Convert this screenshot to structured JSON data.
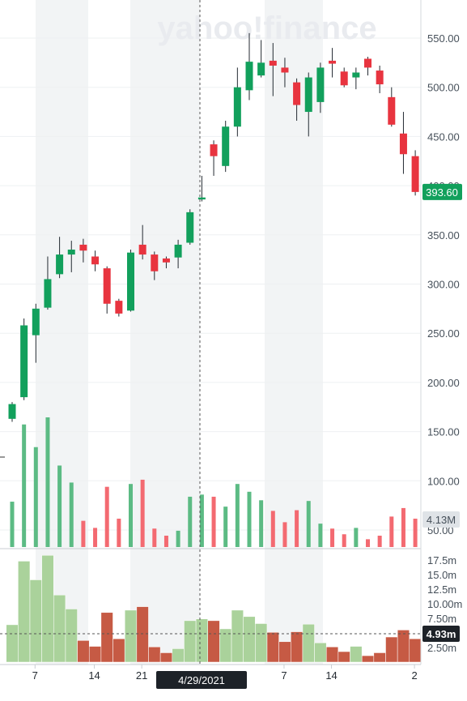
{
  "watermark": "yahoo!finance",
  "chart_data": {
    "type": "candlestick",
    "price_axis": {
      "ticks": [
        "550.00",
        "500.00",
        "450.00",
        "400.00",
        "350.00",
        "300.00",
        "250.00",
        "200.00",
        "150.00",
        "100.00",
        "50.00"
      ],
      "range": [
        40,
        590
      ]
    },
    "volume_axis": {
      "ticks": [
        "17.5m",
        "15.0m",
        "12.5m",
        "10.00m",
        "7.50m",
        "5.00m",
        "2.50m"
      ],
      "range": [
        0,
        18.9
      ]
    },
    "x_ticks": [
      "7",
      "14",
      "21",
      "7",
      "14",
      "2"
    ],
    "crosshair": {
      "date": "4/29/2021",
      "price_badge": "393.60",
      "volume_badge": "4.93m",
      "top_volume_badge": "4.13M"
    },
    "candles": [
      {
        "o": 163,
        "c": 178,
        "h": 180,
        "l": 160,
        "v": 6.4
      },
      {
        "o": 185,
        "c": 258,
        "h": 265,
        "l": 182,
        "v": 17.3
      },
      {
        "o": 248,
        "c": 275,
        "h": 280,
        "l": 220,
        "v": 14.1
      },
      {
        "o": 276,
        "c": 305,
        "h": 328,
        "l": 274,
        "v": 18.3
      },
      {
        "o": 310,
        "c": 330,
        "h": 348,
        "l": 306,
        "v": 11.5
      },
      {
        "o": 330,
        "c": 335,
        "h": 344,
        "l": 312,
        "v": 9.1
      },
      {
        "o": 340,
        "c": 334,
        "h": 346,
        "l": 322,
        "v": 3.7
      },
      {
        "o": 328,
        "c": 320,
        "h": 334,
        "l": 313,
        "v": 2.7
      },
      {
        "o": 316,
        "c": 280,
        "h": 318,
        "l": 270,
        "v": 8.5
      },
      {
        "o": 283,
        "c": 270,
        "h": 285,
        "l": 267,
        "v": 4.0
      },
      {
        "o": 273,
        "c": 332,
        "h": 335,
        "l": 272,
        "v": 8.9
      },
      {
        "o": 340,
        "c": 330,
        "h": 360,
        "l": 325,
        "v": 9.5
      },
      {
        "o": 330,
        "c": 313,
        "h": 333,
        "l": 304,
        "v": 2.6
      },
      {
        "o": 326,
        "c": 322,
        "h": 328,
        "l": 316,
        "v": 1.6
      },
      {
        "o": 327,
        "c": 340,
        "h": 345,
        "l": 316,
        "v": 2.3
      },
      {
        "o": 342,
        "c": 373,
        "h": 376,
        "l": 340,
        "v": 7.1
      },
      {
        "o": 386,
        "c": 388,
        "h": 410,
        "l": 384,
        "v": 7.4
      },
      {
        "o": 442,
        "c": 430,
        "h": 446,
        "l": 410,
        "v": 7.1
      },
      {
        "o": 420,
        "c": 460,
        "h": 466,
        "l": 414,
        "v": 5.7
      },
      {
        "o": 460,
        "c": 500,
        "h": 520,
        "l": 450,
        "v": 8.9
      },
      {
        "o": 497,
        "c": 526,
        "h": 555,
        "l": 487,
        "v": 7.8
      },
      {
        "o": 512,
        "c": 525,
        "h": 548,
        "l": 510,
        "v": 6.6
      },
      {
        "o": 527,
        "c": 522,
        "h": 545,
        "l": 491,
        "v": 5.1
      },
      {
        "o": 520,
        "c": 515,
        "h": 530,
        "l": 500,
        "v": 3.5
      },
      {
        "o": 505,
        "c": 482,
        "h": 509,
        "l": 466,
        "v": 5.2
      },
      {
        "o": 475,
        "c": 510,
        "h": 515,
        "l": 450,
        "v": 6.5
      },
      {
        "o": 485,
        "c": 520,
        "h": 525,
        "l": 474,
        "v": 3.3
      },
      {
        "o": 527,
        "c": 524,
        "h": 540,
        "l": 510,
        "v": 2.6
      },
      {
        "o": 516,
        "c": 502,
        "h": 520,
        "l": 500,
        "v": 1.8
      },
      {
        "o": 510,
        "c": 515,
        "h": 520,
        "l": 498,
        "v": 2.7
      },
      {
        "o": 529,
        "c": 520,
        "h": 531,
        "l": 512,
        "v": 1.1
      },
      {
        "o": 517,
        "c": 503,
        "h": 522,
        "l": 494,
        "v": 1.6
      },
      {
        "o": 490,
        "c": 462,
        "h": 500,
        "l": 460,
        "v": 4.3
      },
      {
        "o": 453,
        "c": 432,
        "h": 475,
        "l": 412,
        "v": 5.5
      },
      {
        "o": 430,
        "c": 393.6,
        "h": 436,
        "l": 390,
        "v": 4.0
      }
    ],
    "colors": {
      "up": "#12a05c",
      "down": "#e8343f",
      "up_vol": "#5cbb84",
      "down_vol": "#f36a71",
      "up_vol2": "#aad29b",
      "down_vol2": "#c65a44"
    }
  }
}
